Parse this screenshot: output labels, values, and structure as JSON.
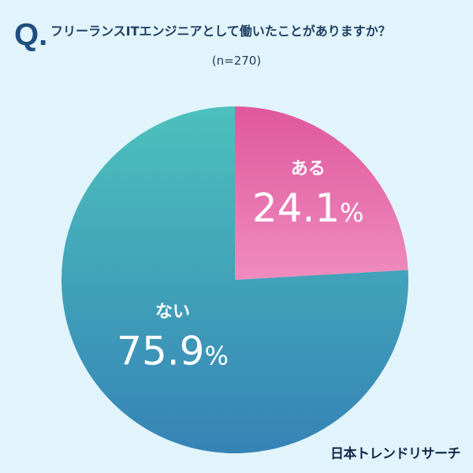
{
  "header": {
    "q_mark": "Q.",
    "question": "フリーランスITエンジニアとして働いたことがありますか？",
    "sample_size": "(n=270)"
  },
  "chart_data": {
    "type": "pie",
    "slices": [
      {
        "label": "ある",
        "value": 24.1,
        "display": "24.1%",
        "colors": [
          "#e0579d",
          "#ee8cbe"
        ]
      },
      {
        "label": "ない",
        "value": 75.9,
        "display": "75.9%",
        "colors": [
          "#4cc1bc",
          "#3683b6"
        ]
      }
    ],
    "start": "12 o'clock",
    "direction": "clockwise"
  },
  "footer": {
    "brand": "日本トレンドリサーチ"
  }
}
